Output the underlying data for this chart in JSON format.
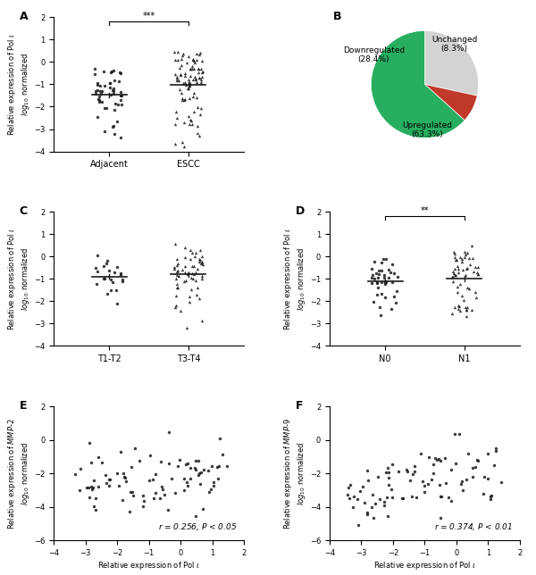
{
  "panel_A": {
    "title": "A",
    "ylabel": "Relative expression of Pol ι\nlog₁₀ normalized",
    "xlabels": [
      "Adjacent",
      "ESCC"
    ],
    "ylim": [
      -4,
      2
    ],
    "yticks": [
      -4,
      -3,
      -2,
      -1,
      0,
      1,
      2
    ],
    "adjacent_mean": -1.2,
    "escc_mean": -0.5,
    "sig_text": "***"
  },
  "panel_B": {
    "title": "B",
    "labels": [
      "Downregulated\n(28.4%)",
      "Unchanged\n(8.3%)",
      "Upregulated\n(63.3%)"
    ],
    "sizes": [
      28.4,
      8.3,
      63.3
    ],
    "colors": [
      "#d3d3d3",
      "#c0392b",
      "#27ae60"
    ],
    "startangle": 90
  },
  "panel_C": {
    "title": "C",
    "ylabel": "Relative expression of Pol ι\nlog₁₀ normalized",
    "xlabels": [
      "T1-T2",
      "T3-T4"
    ],
    "ylim": [
      -4,
      2
    ],
    "yticks": [
      -4,
      -3,
      -2,
      -1,
      0,
      1,
      2
    ],
    "t12_mean": -0.85,
    "t34_mean": -0.75
  },
  "panel_D": {
    "title": "D",
    "ylabel": "Relative expression of Pol ι\nlog₁₀ normalized",
    "xlabels": [
      "N0",
      "N1"
    ],
    "ylim": [
      -4,
      2
    ],
    "yticks": [
      -4,
      -3,
      -2,
      -1,
      0,
      1,
      2
    ],
    "n0_mean": -1.1,
    "n1_mean": -0.65,
    "sig_text": "**"
  },
  "panel_E": {
    "title": "E",
    "xlabel": "Relative expression of Pol ι\nlog₁₀ normalized",
    "ylabel": "Relative expression of MMP-2\nlog₁₀ normalized",
    "xlim": [
      -4,
      2
    ],
    "ylim": [
      -6,
      2
    ],
    "xticks": [
      -4,
      -3,
      -2,
      -1,
      0,
      1,
      2
    ],
    "yticks": [
      -6,
      -4,
      -2,
      0,
      2
    ],
    "annotation": "r = 0.256, P < 0.05"
  },
  "panel_F": {
    "title": "F",
    "xlabel": "Relative expression of Pol ι\nlog₁₀ normalized",
    "ylabel": "Relative expression of MMP-9\nlog₁₀ normalized",
    "xlim": [
      -4,
      2
    ],
    "ylim": [
      -6,
      2
    ],
    "xticks": [
      -4,
      -3,
      -2,
      -1,
      0,
      1,
      2
    ],
    "yticks": [
      -6,
      -4,
      -2,
      0,
      2
    ],
    "annotation": "r = 0.374, P < 0.01"
  },
  "dot_color": "#1a1a1a",
  "mean_line_color": "#1a1a1a",
  "bg_color": "#ffffff"
}
